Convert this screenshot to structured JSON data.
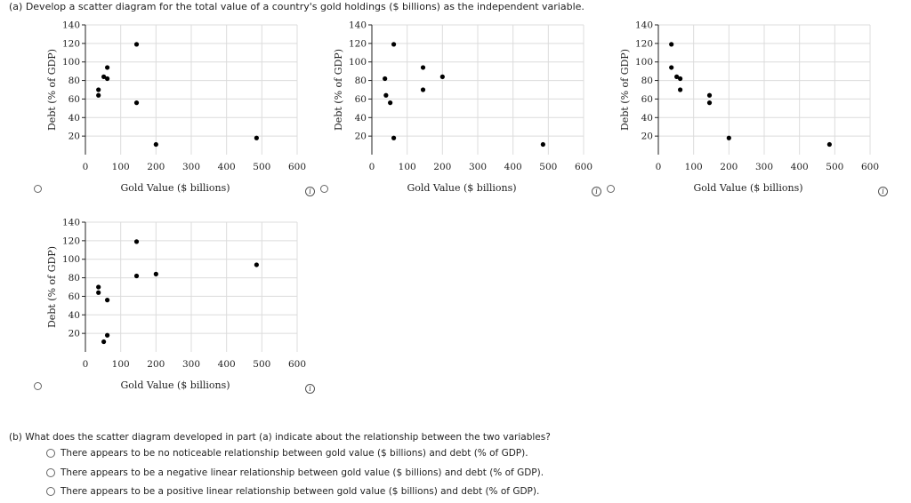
{
  "part_a": {
    "prompt": "(a)   Develop a scatter diagram for the total value of a country's gold holdings ($ billions) as the independent variable."
  },
  "part_b": {
    "prompt": "(b)   What does the scatter diagram developed in part (a) indicate about the relationship between the two variables?",
    "options": [
      "There appears to be no noticeable relationship between gold value ($ billions) and debt (% of GDP).",
      "There appears to be a negative linear relationship between gold value ($ billions) and debt (% of GDP).",
      "There appears to be a positive linear relationship between gold value ($ billions) and debt (% of GDP)."
    ]
  },
  "info_symbol": "i",
  "chart_data": [
    {
      "type": "scatter",
      "xlabel": "Gold Value ($ billions)",
      "ylabel": "Debt (% of GDP)",
      "xlim": [
        0,
        600
      ],
      "ylim": [
        0,
        140
      ],
      "xticks": [
        0,
        100,
        200,
        300,
        400,
        500,
        600
      ],
      "yticks": [
        20,
        40,
        60,
        80,
        100,
        120,
        140
      ],
      "grid": true,
      "points": [
        [
          37,
          64
        ],
        [
          37,
          70
        ],
        [
          52,
          84
        ],
        [
          62,
          82
        ],
        [
          62,
          94
        ],
        [
          145,
          119
        ],
        [
          145,
          56
        ],
        [
          200,
          11
        ],
        [
          485,
          18
        ]
      ]
    },
    {
      "type": "scatter",
      "xlabel": "Gold Value ($ billions)",
      "ylabel": "Debt (% of GDP)",
      "xlim": [
        0,
        600
      ],
      "ylim": [
        0,
        140
      ],
      "xticks": [
        0,
        100,
        200,
        300,
        400,
        500,
        600
      ],
      "yticks": [
        20,
        40,
        60,
        80,
        100,
        120,
        140
      ],
      "grid": true,
      "points": [
        [
          37,
          82
        ],
        [
          40,
          64
        ],
        [
          52,
          56
        ],
        [
          62,
          119
        ],
        [
          62,
          18
        ],
        [
          145,
          94
        ],
        [
          145,
          70
        ],
        [
          200,
          84
        ],
        [
          485,
          11
        ]
      ]
    },
    {
      "type": "scatter",
      "xlabel": "Gold Value ($ billions)",
      "ylabel": "Debt (% of GDP)",
      "xlim": [
        0,
        600
      ],
      "ylim": [
        0,
        140
      ],
      "xticks": [
        0,
        100,
        200,
        300,
        400,
        500,
        600
      ],
      "yticks": [
        20,
        40,
        60,
        80,
        100,
        120,
        140
      ],
      "grid": true,
      "points": [
        [
          37,
          119
        ],
        [
          37,
          94
        ],
        [
          52,
          84
        ],
        [
          62,
          82
        ],
        [
          62,
          70
        ],
        [
          145,
          64
        ],
        [
          145,
          56
        ],
        [
          200,
          18
        ],
        [
          485,
          11
        ]
      ]
    },
    {
      "type": "scatter",
      "xlabel": "Gold Value ($ billions)",
      "ylabel": "Debt (% of GDP)",
      "xlim": [
        0,
        600
      ],
      "ylim": [
        0,
        140
      ],
      "xticks": [
        0,
        100,
        200,
        300,
        400,
        500,
        600
      ],
      "yticks": [
        20,
        40,
        60,
        80,
        100,
        120,
        140
      ],
      "grid": true,
      "points": [
        [
          37,
          64
        ],
        [
          37,
          70
        ],
        [
          52,
          11
        ],
        [
          62,
          18
        ],
        [
          62,
          56
        ],
        [
          145,
          119
        ],
        [
          145,
          82
        ],
        [
          200,
          84
        ],
        [
          485,
          94
        ]
      ]
    }
  ]
}
